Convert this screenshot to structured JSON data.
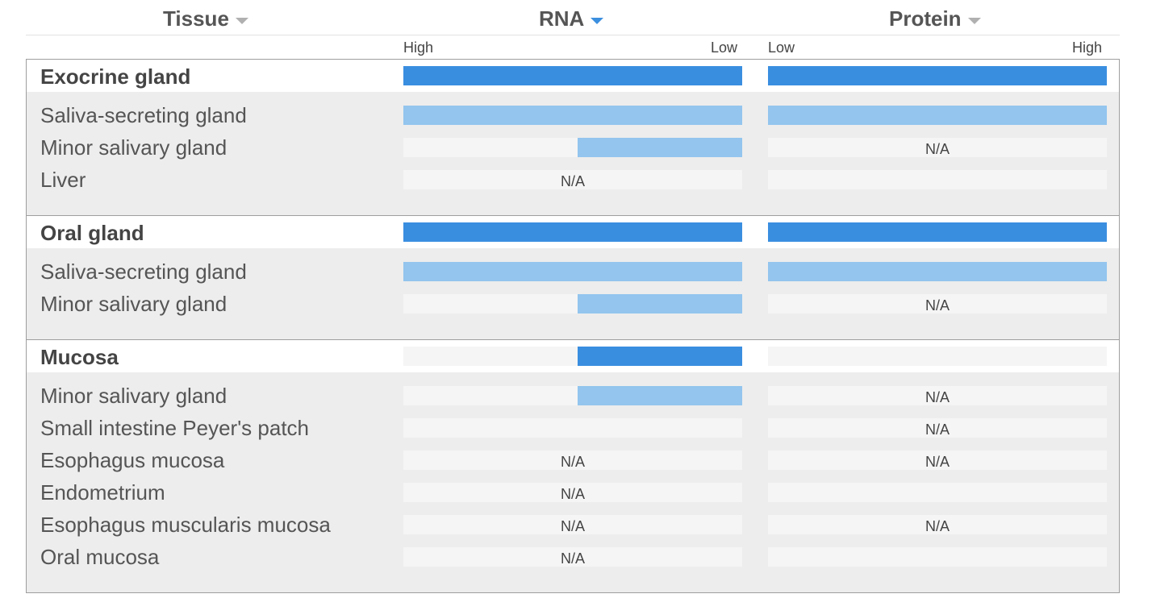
{
  "header": {
    "tissue_label": "Tissue",
    "rna_label": "RNA",
    "protein_label": "Protein",
    "rna_scale_left": "High",
    "rna_scale_right": "Low",
    "protein_scale_left": "Low",
    "protein_scale_right": "High",
    "sort_icon": "caret-down-icon",
    "accent_color": "#3a8ee0"
  },
  "groups": [
    {
      "title": "Exocrine gland",
      "rna_level": 1.0,
      "protein_level": 1.0,
      "rows": [
        {
          "label": "Saliva-secreting gland",
          "rna_level": 1.0,
          "rna_na": "",
          "protein_level": 1.0,
          "protein_na": ""
        },
        {
          "label": "Minor salivary gland",
          "rna_level": 0.486,
          "rna_na": "",
          "protein_level": 0,
          "protein_na": "N/A"
        },
        {
          "label": "Liver",
          "rna_level": 0,
          "rna_na": "N/A",
          "protein_level": 0,
          "protein_na": ""
        }
      ]
    },
    {
      "title": "Oral gland",
      "rna_level": 1.0,
      "protein_level": 1.0,
      "rows": [
        {
          "label": "Saliva-secreting gland",
          "rna_level": 1.0,
          "rna_na": "",
          "protein_level": 1.0,
          "protein_na": ""
        },
        {
          "label": "Minor salivary gland",
          "rna_level": 0.486,
          "rna_na": "",
          "protein_level": 0,
          "protein_na": "N/A"
        }
      ]
    },
    {
      "title": "Mucosa",
      "rna_level": 0.486,
      "protein_level": 0,
      "rows": [
        {
          "label": "Minor salivary gland",
          "rna_level": 0.486,
          "rna_na": "",
          "protein_level": 0,
          "protein_na": "N/A"
        },
        {
          "label": "Small intestine Peyer's patch",
          "rna_level": 0,
          "rna_na": "",
          "protein_level": 0,
          "protein_na": "N/A"
        },
        {
          "label": "Esophagus mucosa",
          "rna_level": 0,
          "rna_na": "N/A",
          "protein_level": 0,
          "protein_na": "N/A"
        },
        {
          "label": "Endometrium",
          "rna_level": 0,
          "rna_na": "N/A",
          "protein_level": 0,
          "protein_na": ""
        },
        {
          "label": "Esophagus muscularis mucosa",
          "rna_level": 0,
          "rna_na": "N/A",
          "protein_level": 0,
          "protein_na": "N/A"
        },
        {
          "label": "Oral mucosa",
          "rna_level": 0,
          "rna_na": "N/A",
          "protein_level": 0,
          "protein_na": ""
        }
      ]
    }
  ]
}
